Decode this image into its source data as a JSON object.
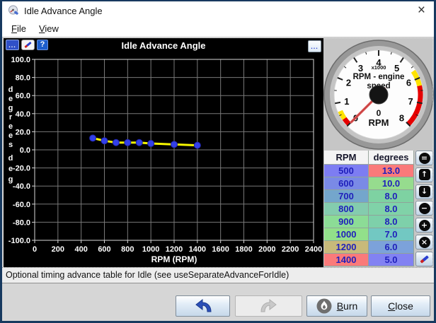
{
  "window": {
    "title": "Idle Advance Angle"
  },
  "menu": {
    "items": [
      "File",
      "View"
    ]
  },
  "icons": {
    "dots": "...",
    "help": "?",
    "close_x": "×"
  },
  "chart_data": {
    "type": "line",
    "title": "Idle Advance Angle",
    "xlabel": "RPM (RPM)",
    "ylabel": "degrees",
    "ylabel_units": "deg",
    "xlim": [
      0,
      2400
    ],
    "ylim": [
      -100,
      100
    ],
    "x_ticks": [
      0,
      200,
      400,
      600,
      800,
      1000,
      1200,
      1400,
      1600,
      1800,
      2000,
      2200,
      2400
    ],
    "y_ticks": [
      100,
      80,
      60,
      40,
      20,
      0,
      -20,
      -40,
      -60,
      -80,
      -100
    ],
    "x": [
      500,
      600,
      700,
      800,
      900,
      1000,
      1200,
      1400
    ],
    "y": [
      13,
      10,
      8,
      8,
      8,
      7,
      6,
      5
    ],
    "grid": true,
    "legend": "none",
    "line_color": "#f8f800",
    "point_color": "#3340e8",
    "grid_color": "#787878"
  },
  "gauge": {
    "title_lines": [
      "RPM - engine",
      "speed"
    ],
    "multiplier_label": "x1000",
    "value": "0",
    "units": "RPM",
    "min": 0,
    "max": 8,
    "majors": [
      0,
      1,
      2,
      3,
      4,
      5,
      6,
      7,
      8
    ],
    "needle_value": 0,
    "arcs": [
      {
        "from": 0,
        "to": 0.3,
        "color": "#e60000"
      },
      {
        "from": 0.3,
        "to": 0.65,
        "color": "#ffe300"
      },
      {
        "from": 5.65,
        "to": 6.3,
        "color": "#ffe300"
      },
      {
        "from": 6.3,
        "to": 8,
        "color": "#e60000"
      }
    ]
  },
  "table": {
    "headers": [
      "RPM",
      "degrees"
    ],
    "rows": [
      {
        "rpm": "500",
        "degrees": "13.0",
        "rpm_bg": "#7d7df2",
        "deg_bg": "#fa7a7a"
      },
      {
        "rpm": "600",
        "degrees": "10.0",
        "rpm_bg": "#7a8ae6",
        "deg_bg": "#96dc8e"
      },
      {
        "rpm": "700",
        "degrees": "8.0",
        "rpm_bg": "#74a6cc",
        "deg_bg": "#7ed2a2"
      },
      {
        "rpm": "800",
        "degrees": "8.0",
        "rpm_bg": "#84ccae",
        "deg_bg": "#80d2a8"
      },
      {
        "rpm": "900",
        "degrees": "8.0",
        "rpm_bg": "#8cdc96",
        "deg_bg": "#7ed0aa"
      },
      {
        "rpm": "1000",
        "degrees": "7.0",
        "rpm_bg": "#92e08a",
        "deg_bg": "#72c8c2"
      },
      {
        "rpm": "1200",
        "degrees": "6.0",
        "rpm_bg": "#c8ba7a",
        "deg_bg": "#7ca2da"
      },
      {
        "rpm": "1400",
        "degrees": "5.0",
        "rpm_bg": "#fa7a7a",
        "deg_bg": "#8282f2"
      }
    ]
  },
  "side_buttons": [
    {
      "name": "equals-button",
      "glyph": "=",
      "shape": "circle"
    },
    {
      "name": "increase-button",
      "glyph": "↑",
      "shape": "square"
    },
    {
      "name": "decrease-button",
      "glyph": "↓",
      "shape": "square"
    },
    {
      "name": "minus-button",
      "glyph": "−",
      "shape": "circle"
    },
    {
      "name": "plus-button",
      "glyph": "+",
      "shape": "circle"
    },
    {
      "name": "clear-button",
      "glyph": "×",
      "shape": "circle"
    },
    {
      "name": "edit-pencil-button",
      "glyph": "",
      "shape": "pencil"
    }
  ],
  "status_text": "Optional timing advance table for Idle (see useSeparateAdvanceForIdle)",
  "footer": {
    "burn_label": "Burn",
    "close_label": "Close"
  }
}
